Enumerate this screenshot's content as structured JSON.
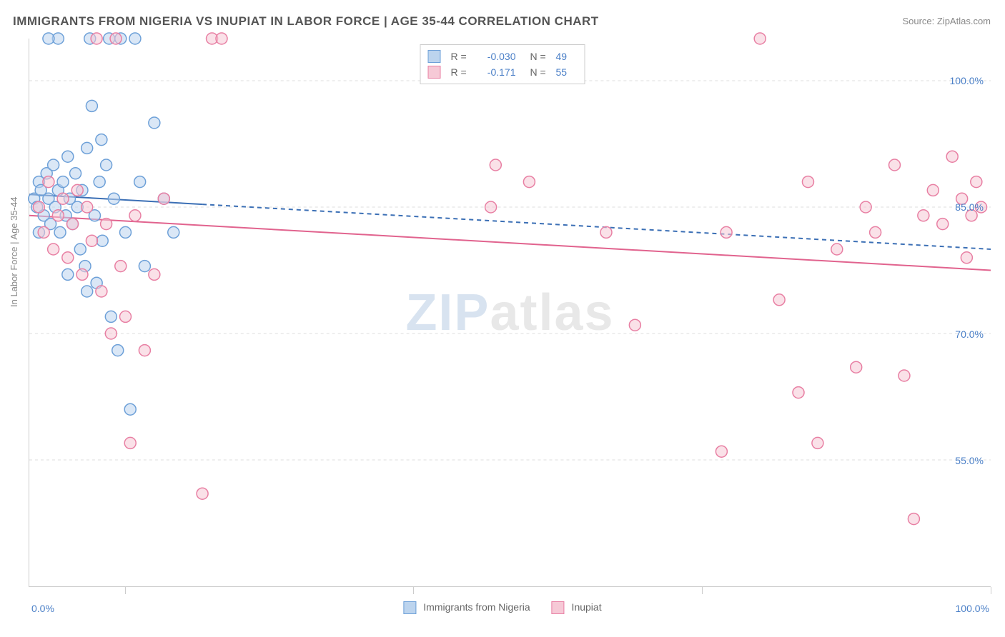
{
  "title": "IMMIGRANTS FROM NIGERIA VS INUPIAT IN LABOR FORCE | AGE 35-44 CORRELATION CHART",
  "source": "Source: ZipAtlas.com",
  "ylabel": "In Labor Force | Age 35-44",
  "watermark_a": "ZIP",
  "watermark_b": "atlas",
  "chart": {
    "type": "scatter",
    "xlim": [
      0,
      100
    ],
    "ylim": [
      40,
      105
    ],
    "yticks": [
      55.0,
      70.0,
      85.0,
      100.0
    ],
    "ytick_labels": [
      "55.0%",
      "70.0%",
      "85.0%",
      "100.0%"
    ],
    "xtick_positions": [
      0,
      10,
      40,
      70,
      100
    ],
    "xtick_left": "0.0%",
    "xtick_right": "100.0%",
    "grid_color": "#dddddd",
    "axis_color": "#cccccc",
    "background_color": "#ffffff",
    "marker_radius": 8,
    "marker_stroke_width": 1.5,
    "series": [
      {
        "name": "Immigrants from Nigeria",
        "fill": "#bcd4ee",
        "stroke": "#6da0d8",
        "fill_opacity": 0.55,
        "R": "-0.030",
        "N": "49",
        "trend": {
          "x1": 0,
          "y1": 86.5,
          "x2": 100,
          "y2": 80.0,
          "solid_until_x": 18,
          "color": "#3b6fb5",
          "width": 2
        },
        "points": [
          [
            0.5,
            86
          ],
          [
            0.8,
            85
          ],
          [
            1.0,
            88
          ],
          [
            1.2,
            87
          ],
          [
            1.5,
            84
          ],
          [
            1.8,
            89
          ],
          [
            2.0,
            86
          ],
          [
            2.2,
            83
          ],
          [
            2.5,
            90
          ],
          [
            2.7,
            85
          ],
          [
            3.0,
            87
          ],
          [
            3.2,
            82
          ],
          [
            3.5,
            88
          ],
          [
            3.8,
            84
          ],
          [
            4.0,
            91
          ],
          [
            4.2,
            86
          ],
          [
            4.5,
            83
          ],
          [
            4.8,
            89
          ],
          [
            5.0,
            85
          ],
          [
            5.3,
            80
          ],
          [
            5.5,
            87
          ],
          [
            5.8,
            78
          ],
          [
            6.0,
            92
          ],
          [
            6.3,
            105
          ],
          [
            6.5,
            97
          ],
          [
            6.8,
            84
          ],
          [
            7.0,
            76
          ],
          [
            7.3,
            88
          ],
          [
            7.6,
            81
          ],
          [
            8.0,
            90
          ],
          [
            8.3,
            105
          ],
          [
            8.5,
            72
          ],
          [
            8.8,
            86
          ],
          [
            9.2,
            68
          ],
          [
            9.5,
            105
          ],
          [
            10.0,
            82
          ],
          [
            10.5,
            61
          ],
          [
            11.0,
            105
          ],
          [
            11.5,
            88
          ],
          [
            12.0,
            78
          ],
          [
            13.0,
            95
          ],
          [
            14.0,
            86
          ],
          [
            15.0,
            82
          ],
          [
            3.0,
            105
          ],
          [
            4.0,
            77
          ],
          [
            2.0,
            105
          ],
          [
            6.0,
            75
          ],
          [
            7.5,
            93
          ],
          [
            1.0,
            82
          ]
        ]
      },
      {
        "name": "Inupiat",
        "fill": "#f6c9d6",
        "stroke": "#e87fa3",
        "fill_opacity": 0.55,
        "R": "-0.171",
        "N": "55",
        "trend": {
          "x1": 0,
          "y1": 84.0,
          "x2": 100,
          "y2": 77.5,
          "solid_until_x": 100,
          "color": "#e1638e",
          "width": 2
        },
        "points": [
          [
            1.0,
            85
          ],
          [
            1.5,
            82
          ],
          [
            2.0,
            88
          ],
          [
            2.5,
            80
          ],
          [
            3.0,
            84
          ],
          [
            3.5,
            86
          ],
          [
            4.0,
            79
          ],
          [
            4.5,
            83
          ],
          [
            5.0,
            87
          ],
          [
            5.5,
            77
          ],
          [
            6.0,
            85
          ],
          [
            6.5,
            81
          ],
          [
            7.0,
            105
          ],
          [
            7.5,
            75
          ],
          [
            8.0,
            83
          ],
          [
            8.5,
            70
          ],
          [
            9.0,
            105
          ],
          [
            9.5,
            78
          ],
          [
            10.0,
            72
          ],
          [
            10.5,
            57
          ],
          [
            11.0,
            84
          ],
          [
            12.0,
            68
          ],
          [
            13.0,
            77
          ],
          [
            14.0,
            86
          ],
          [
            18.0,
            51
          ],
          [
            19.0,
            105
          ],
          [
            20.0,
            105
          ],
          [
            48.0,
            85
          ],
          [
            48.5,
            90
          ],
          [
            52.0,
            88
          ],
          [
            60.0,
            82
          ],
          [
            63.0,
            71
          ],
          [
            72.0,
            56
          ],
          [
            72.5,
            82
          ],
          [
            76.0,
            105
          ],
          [
            78.0,
            74
          ],
          [
            80.0,
            63
          ],
          [
            81.0,
            88
          ],
          [
            82.0,
            57
          ],
          [
            84.0,
            80
          ],
          [
            86.0,
            66
          ],
          [
            87.0,
            85
          ],
          [
            88.0,
            82
          ],
          [
            90.0,
            90
          ],
          [
            91.0,
            65
          ],
          [
            92.0,
            48
          ],
          [
            93.0,
            84
          ],
          [
            94.0,
            87
          ],
          [
            95.0,
            83
          ],
          [
            96.0,
            91
          ],
          [
            97.0,
            86
          ],
          [
            97.5,
            79
          ],
          [
            98.0,
            84
          ],
          [
            98.5,
            88
          ],
          [
            99.0,
            85
          ]
        ]
      }
    ]
  }
}
